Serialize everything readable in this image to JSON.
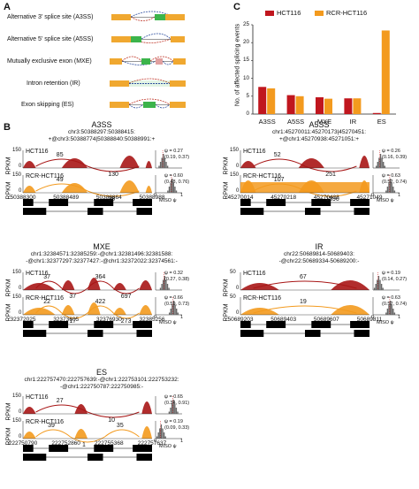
{
  "panel_labels": {
    "a": "A",
    "b": "B",
    "c": "C"
  },
  "panel_a": {
    "events": [
      {
        "label": "Alternative 3' splice site (A3SS)"
      },
      {
        "label": "Alternative 5' splice site (A5SS)"
      },
      {
        "label": "Mutually exclusive exon (MXE)"
      },
      {
        "label": "Intron retention (IR)"
      },
      {
        "label": "Exon skipping (ES)"
      }
    ],
    "colors": {
      "exon": "#f0a830",
      "alt_exon_green": "#3cb44b",
      "alt_exon_pink": "#e0a0a0",
      "splice_red": "#c0392b",
      "splice_blue": "#3050a0"
    }
  },
  "chart_data": {
    "type": "bar",
    "ylabel": "No. of affected splicing events",
    "categories": [
      "A3SS",
      "A5SS",
      "MXE",
      "IR",
      "ES"
    ],
    "yticks": [
      "0",
      "5",
      "10",
      "15",
      "20",
      "25"
    ],
    "ylim": [
      0,
      25
    ],
    "series": [
      {
        "name": "HCT116",
        "color": "#c0161e",
        "values": [
          7.6,
          5.3,
          4.7,
          4.4,
          0.3
        ]
      },
      {
        "name": "RCR-HCT116",
        "color": "#f39a1e",
        "values": [
          7.2,
          5.0,
          4.3,
          4.4,
          23.4
        ]
      }
    ],
    "legend_position": "top"
  },
  "sashimi": {
    "rpkm_label": "RPKM",
    "miso_label": "MISO ψ",
    "miso_axis": [
      "0",
      "1"
    ],
    "panels": [
      {
        "title": "A3SS",
        "coords": [
          "chr3:50388297:50388415:",
          "+@chr3:50388774|50388840:50388991:+"
        ],
        "tracks": [
          {
            "name": "HCT116",
            "ytick": "150",
            "junctions": [
              "85",
              "130"
            ],
            "psi": "ψ = 0.27",
            "ci": "(0.19, 0.37)"
          },
          {
            "name": "RCR-HCT116",
            "ytick": "150",
            "junctions": [
              "49",
              "38"
            ],
            "psi": "ψ = 0.60",
            "ci": "(0.48, 0.76)"
          }
        ],
        "xticks": [
          "50388300",
          "50388489",
          "50388864",
          "50388988"
        ]
      },
      {
        "title": "A5SS",
        "coords": [
          "chr1:45270011:45270173|45270451:",
          "+@chr1:45270938:45271051:+"
        ],
        "tracks": [
          {
            "name": "HCT116",
            "ytick": "150",
            "junctions": [
              "52",
              "251"
            ],
            "psi": "ψ = 0.26",
            "ci": "(0.16, 0.39)"
          },
          {
            "name": "RCR-HCT116",
            "ytick": "150",
            "junctions": [
              "107",
              "1390"
            ],
            "psi": "ψ = 0.63",
            "ci": "(0.52, 0.74)"
          }
        ],
        "xticks": [
          "45270014",
          "45270218",
          "45270422",
          "45271049"
        ]
      },
      {
        "title": "MXE",
        "coords": [
          "chr1:32384571:32385259:-@chr1:32381496:32381588:",
          "-@chr1:32377297:32377427:-@chr1:32372022:32374561:-"
        ],
        "tracks": [
          {
            "name": "HCT116",
            "ytick": "150",
            "junctions": [
              "37",
              "37",
              "364",
              "697"
            ],
            "psi": "ψ = 0.32",
            "ci": "(0.27, 0.38)"
          },
          {
            "name": "RCR-HCT116",
            "ytick": "150",
            "junctions": [
              "22",
              "17",
              "422",
              "273"
            ],
            "psi": "ψ = 0.66",
            "ci": "(0.59, 0.73)"
          }
        ],
        "xticks": [
          "32372025",
          "32373605",
          "32376930",
          "32385256"
        ]
      },
      {
        "title": "IR",
        "coords": [
          "chr22:50689814-50689403:",
          "-@chr22:50689334-50689200:-"
        ],
        "tracks": [
          {
            "name": "HCT116",
            "ytick": "50",
            "junctions": [
              "67"
            ],
            "psi": "ψ = 0.19",
            "ci": "(0.14, 0.27)"
          },
          {
            "name": "RCR-HCT116",
            "ytick": "50",
            "junctions": [
              "19"
            ],
            "psi": "ψ = 0.63",
            "ci": "(0.52, 0.74)"
          }
        ],
        "xticks": [
          "50689203",
          "50689403",
          "50689607",
          "50689811"
        ]
      },
      {
        "title": "ES",
        "coords": [
          "chr1:222757470:222757639:-@chr1:222753101:222753232:",
          "-@chr1:222750787:222750985:-"
        ],
        "tracks": [
          {
            "name": "HCT116",
            "ytick": "150",
            "junctions": [
              "27",
              "10"
            ],
            "psi": "ψ = 0.65",
            "ci": "(0.34, 0.91)"
          },
          {
            "name": "RCR-HCT116",
            "ytick": "150",
            "junctions": [
              "39",
              "1",
              "35"
            ],
            "psi": "ψ = 0.19",
            "ci": "(0.09, 0.33)"
          }
        ],
        "xticks": [
          "222750790",
          "222752860",
          "222755368",
          "222757637"
        ]
      }
    ]
  }
}
